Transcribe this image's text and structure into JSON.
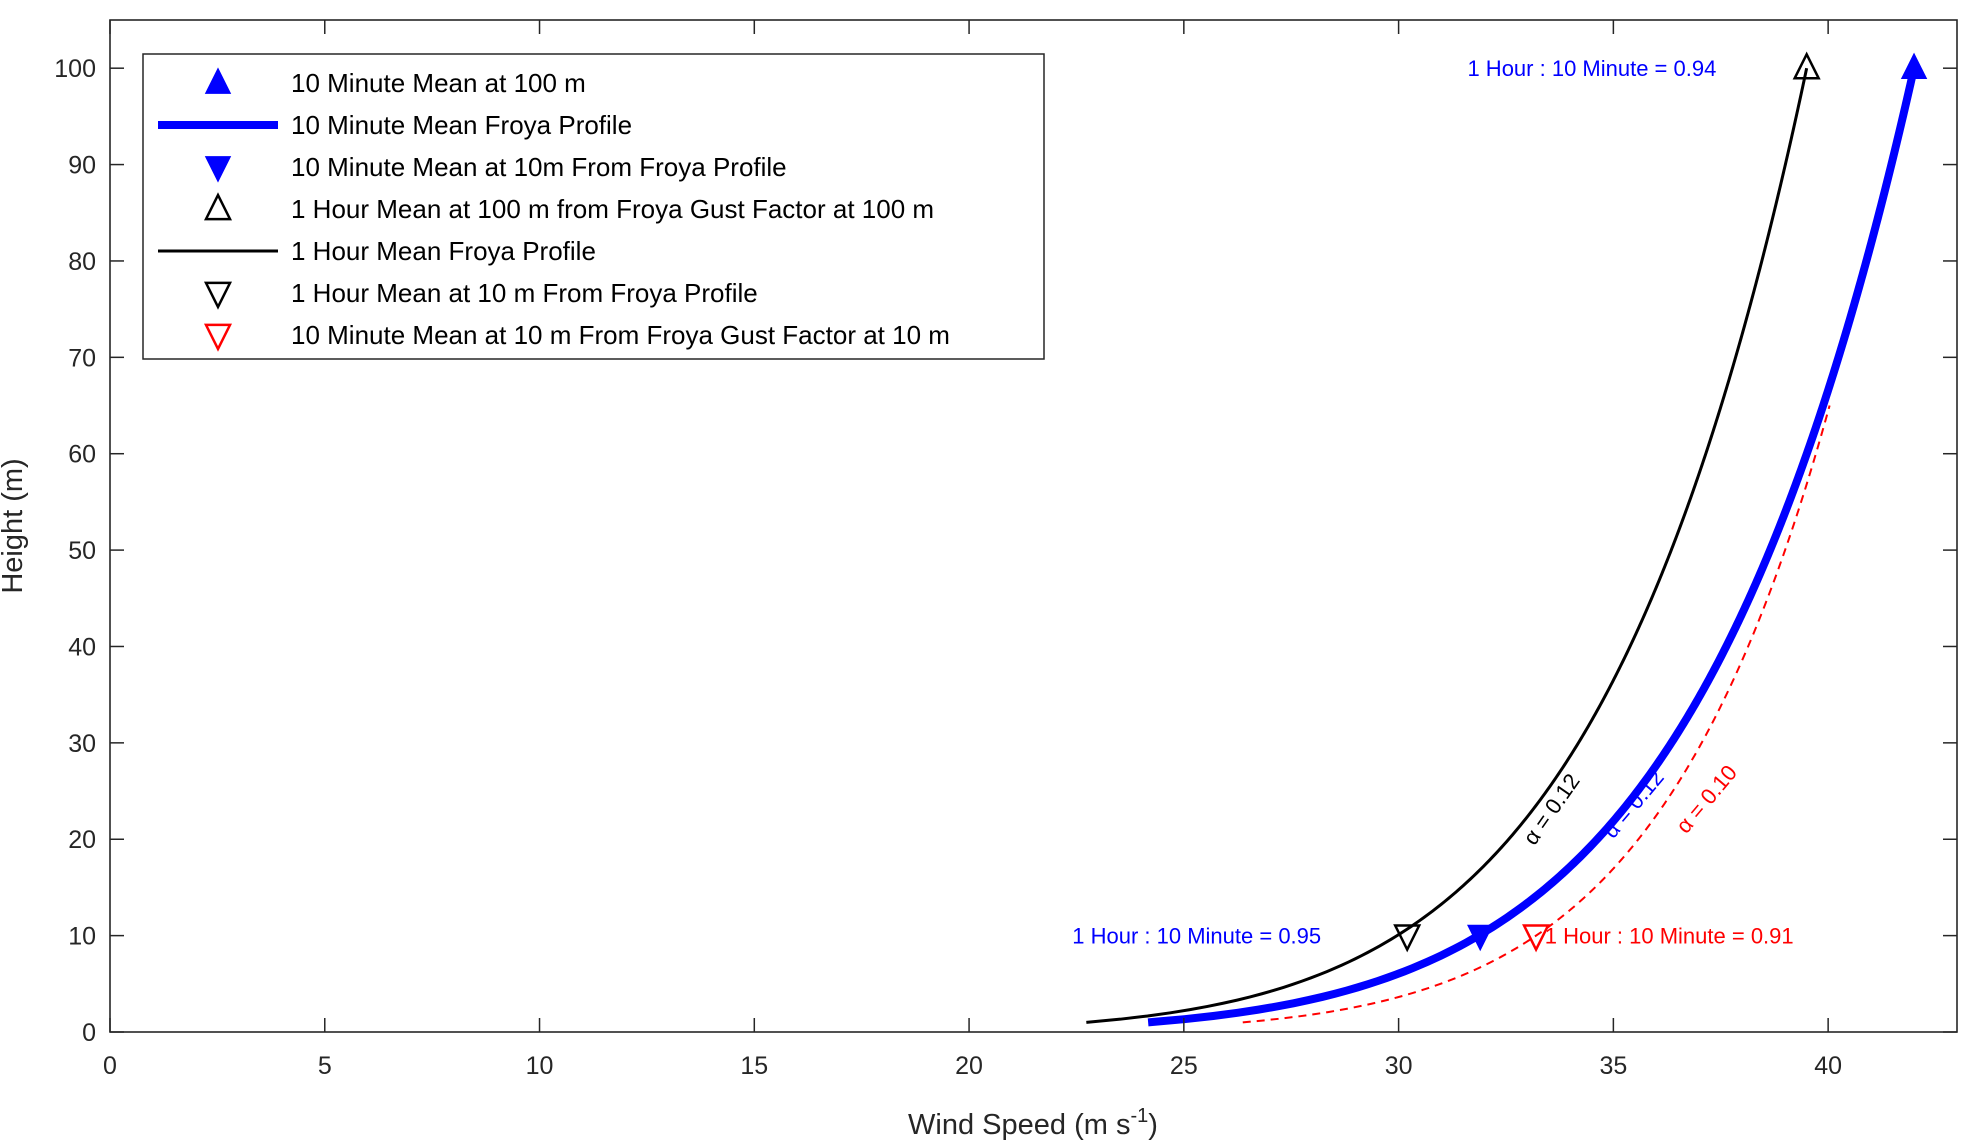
{
  "chart_data": {
    "type": "line",
    "title": "",
    "xlabel": {
      "main": "Wind Speed (m s",
      "sup": "-1",
      "close": ")"
    },
    "ylabel": "Height (m)",
    "xlim": [
      0,
      43
    ],
    "ylim": [
      0,
      105
    ],
    "xticks": [
      0,
      5,
      10,
      15,
      20,
      25,
      30,
      35,
      40
    ],
    "yticks": [
      0,
      10,
      20,
      30,
      40,
      50,
      60,
      70,
      80,
      90,
      100
    ],
    "grid": false,
    "legend_position": "top-left",
    "legend": [
      {
        "label": "10 Minute Mean at 100 m",
        "kind": "tri-up-filled",
        "color": "#0000ff"
      },
      {
        "label": "10 Minute Mean Froya Profile",
        "kind": "thick-line",
        "color": "#0000ff"
      },
      {
        "label": "10 Minute Mean at 10m From Froya Profile",
        "kind": "tri-down-filled",
        "color": "#0000ff"
      },
      {
        "label": "1 Hour Mean at 100 m from Froya Gust Factor at 100 m",
        "kind": "tri-up-open",
        "color": "#000000"
      },
      {
        "label": "1 Hour Mean Froya Profile",
        "kind": "line",
        "color": "#000000"
      },
      {
        "label": "1 Hour Mean at 10 m From Froya Profile",
        "kind": "tri-down-open",
        "color": "#000000"
      },
      {
        "label": "10 Minute Mean at 10 m From Froya Gust Factor at 10 m",
        "kind": "tri-down-open",
        "color": "#ff0000"
      }
    ],
    "curves": [
      {
        "id": "ten-min-profile",
        "ref_speed": 42.0,
        "ref_height": 100,
        "alpha": 0.12,
        "z_min": 1,
        "z_max": 100,
        "color": "#0000ff",
        "style": "thick"
      },
      {
        "id": "one-hour-profile",
        "ref_speed": 39.5,
        "ref_height": 100,
        "alpha": 0.12,
        "z_min": 1,
        "z_max": 100,
        "color": "#000000",
        "style": "solid"
      },
      {
        "id": "gust-profile",
        "ref_speed": 33.2,
        "ref_height": 10,
        "alpha": 0.1,
        "z_min": 1,
        "z_max": 65,
        "color": "#ff0000",
        "style": "dashed"
      }
    ],
    "points": [
      {
        "x": 42.0,
        "y": 100,
        "marker": "tri-up-filled",
        "color": "#0000ff"
      },
      {
        "x": 31.9,
        "y": 10,
        "marker": "tri-down-filled",
        "color": "#0000ff"
      },
      {
        "x": 39.5,
        "y": 100,
        "marker": "tri-up-open",
        "color": "#000000"
      },
      {
        "x": 30.2,
        "y": 10,
        "marker": "tri-down-open",
        "color": "#000000"
      },
      {
        "x": 33.2,
        "y": 10,
        "marker": "tri-down-open",
        "color": "#ff0000"
      }
    ],
    "annotations": [
      {
        "text": "1 Hour : 10 Minute = 0.94",
        "x": 34.5,
        "y": 100,
        "color": "#0000ff",
        "rotate": 0,
        "anchor": "middle"
      },
      {
        "text": "1 Hour : 10 Minute = 0.95",
        "x": 25.3,
        "y": 10,
        "color": "#0000ff",
        "rotate": 0,
        "anchor": "middle"
      },
      {
        "text": "1 Hour : 10 Minute = 0.91",
        "x": 36.3,
        "y": 10,
        "color": "#ff0000",
        "rotate": 0,
        "anchor": "middle"
      },
      {
        "text": "α = 0.12",
        "x": 33.7,
        "y": 23.5,
        "color": "#000000",
        "rotate": -55,
        "anchor": "middle"
      },
      {
        "text": "α = 0.12",
        "x": 35.6,
        "y": 24.0,
        "color": "#0000ff",
        "rotate": -50,
        "anchor": "middle"
      },
      {
        "text": "α = 0.10",
        "x": 37.3,
        "y": 24.5,
        "color": "#ff0000",
        "rotate": -50,
        "anchor": "middle"
      }
    ]
  }
}
